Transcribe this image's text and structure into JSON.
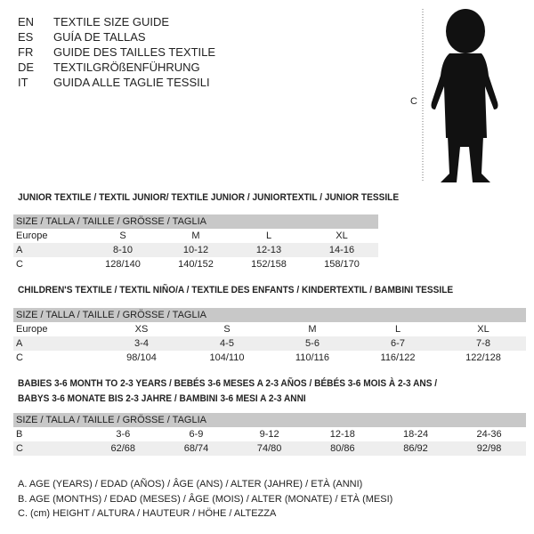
{
  "titles": [
    {
      "code": "EN",
      "text": "TEXTILE SIZE GUIDE"
    },
    {
      "code": "ES",
      "text": "GUÍA DE TALLAS"
    },
    {
      "code": "FR",
      "text": "GUIDE DES TAILLES TEXTILE"
    },
    {
      "code": "DE",
      "text": "TEXTILGRÖßENFÜHRUNG"
    },
    {
      "code": "IT",
      "text": "GUIDA ALLE TAGLIE TESSILI"
    }
  ],
  "figure": {
    "measure_label": "C"
  },
  "size_header": "SIZE / TALLA / TAILLE / GRÖSSE / TAGLIA",
  "junior": {
    "title": "JUNIOR TEXTILE / TEXTIL JUNIOR/ TEXTILE JUNIOR / JUNIORTEXTIL / JUNIOR TESSILE",
    "rows": [
      [
        "Europe",
        "S",
        "M",
        "L",
        "XL"
      ],
      [
        "A",
        "8-10",
        "10-12",
        "12-13",
        "14-16"
      ],
      [
        "C",
        "128/140",
        "140/152",
        "152/158",
        "158/170"
      ]
    ]
  },
  "children": {
    "title": "CHILDREN'S TEXTILE / TEXTIL NIÑO/A / TEXTILE DES ENFANTS / KINDERTEXTIL / BAMBINI TESSILE",
    "rows": [
      [
        "Europe",
        "XS",
        "S",
        "M",
        "L",
        "XL"
      ],
      [
        "A",
        "3-4",
        "4-5",
        "5-6",
        "6-7",
        "7-8"
      ],
      [
        "C",
        "98/104",
        "104/110",
        "110/116",
        "116/122",
        "122/128"
      ]
    ]
  },
  "babies": {
    "title_line1": "BABIES 3-6 MONTH TO 2-3 YEARS / BEBÉS 3-6 MESES A 2-3 AÑOS / BÉBÉS 3-6 MOIS À 2-3 ANS /",
    "title_line2": "BABYS 3-6 MONATE BIS 2-3 JAHRE / BAMBINI 3-6 MESI A 2-3 ANNI",
    "rows": [
      [
        "B",
        "3-6",
        "6-9",
        "9-12",
        "12-18",
        "18-24",
        "24-36"
      ],
      [
        "C",
        "62/68",
        "68/74",
        "74/80",
        "80/86",
        "86/92",
        "92/98"
      ]
    ]
  },
  "legend": [
    "A. AGE (YEARS) / EDAD (AÑOS) / ÂGE (ANS) / ALTER (JAHRE) / ETÀ (ANNI)",
    "B. AGE (MONTHS) / EDAD (MESES) / ÂGE (MOIS) / ALTER (MONATE) / ETÀ (MESI)",
    "C. (cm) HEIGHT / ALTURA / HAUTEUR / HÖHE / ALTEZZA"
  ]
}
